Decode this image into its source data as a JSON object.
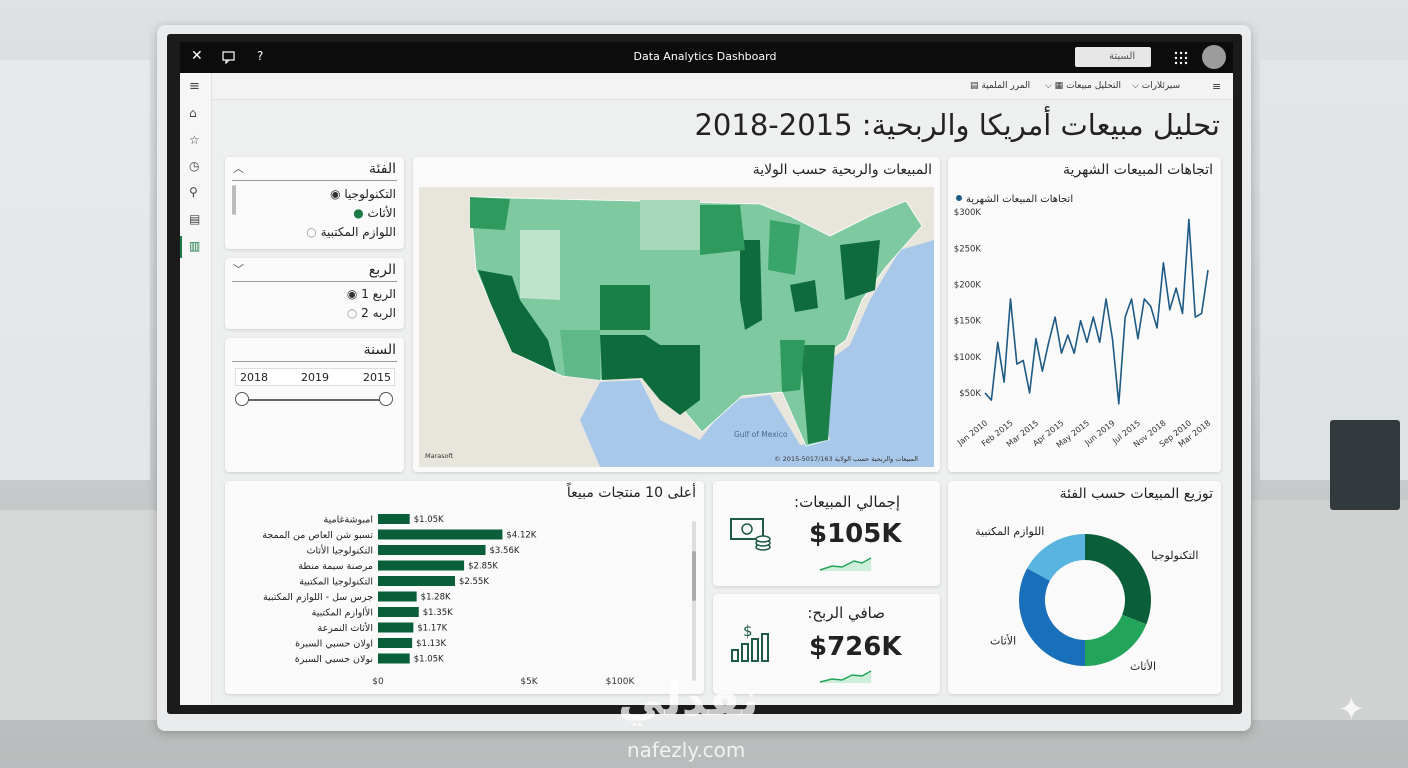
{
  "window": {
    "title": "Data Analytics Dashboard",
    "search": "السبتة"
  },
  "toolbar": [
    "سيرئلارات",
    "التحليل مبيعات",
    "المرر الملمية"
  ],
  "header": {
    "title": "تحليل مبيعات أمريكا والربحية: 2015-2018"
  },
  "filters": [
    {
      "title": "الفئة",
      "options": [
        "التكنولوجيا",
        "الأثاث",
        "اللوازم المكتبية"
      ]
    },
    {
      "title": "الربع",
      "options": [
        "الربع 1",
        "الربه 2"
      ]
    },
    {
      "title": "السنة",
      "options": [
        "2018",
        "2019",
        "2015"
      ]
    }
  ],
  "map": {
    "title": "المبيعات والربحية حسب الولاية",
    "label": "Gulf of Mexico",
    "logo": "Marasoft",
    "credit": "© 2015-5017/163 المبيعات والربحية حسب الولاية"
  },
  "kpis": [
    {
      "label": "إجمالي المبيعات:",
      "value": "$105K"
    },
    {
      "label": "صافي الربح:",
      "value": "$726K"
    }
  ],
  "watermark": {
    "arabic": "نفذلي",
    "url": "nafezly.com"
  },
  "chart_data": [
    {
      "type": "line",
      "title": "اتجاهات المبيعات الشهرية",
      "categories": [
        "Jan 2010",
        null,
        null,
        null,
        "Feb 2015",
        null,
        null,
        null,
        "Mar 2015",
        null,
        null,
        null,
        "Apr 2015",
        null,
        null,
        null,
        "May 2015",
        null,
        null,
        null,
        "Jun 2019",
        null,
        null,
        null,
        "Jul 2015",
        null,
        null,
        null,
        "Nov 2018",
        null,
        null,
        null,
        "Sep 2010",
        null,
        null,
        "Mar 2018"
      ],
      "series": [
        {
          "name": "اتجاهات المبيعات الشهرية",
          "color": "#1f5a85",
          "values": [
            50000,
            40000,
            120000,
            65000,
            180000,
            90000,
            95000,
            50000,
            125000,
            80000,
            120000,
            155000,
            105000,
            130000,
            105000,
            150000,
            120000,
            155000,
            120000,
            180000,
            125000,
            35000,
            155000,
            180000,
            125000,
            180000,
            170000,
            140000,
            230000,
            165000,
            195000,
            160000,
            290000,
            155000,
            160000,
            220000
          ]
        }
      ],
      "ylim": [
        25000,
        310000
      ],
      "yticks": [
        {
          "value": 50000,
          "label": "$50K"
        },
        {
          "value": 100000,
          "label": "$100K"
        },
        {
          "value": 150000,
          "label": "$150K"
        },
        {
          "value": 200000,
          "label": "$200K"
        },
        {
          "value": 250000,
          "label": "$250K"
        },
        {
          "value": 300000,
          "label": "$300K"
        }
      ],
      "grid": false,
      "legend": "top-left"
    },
    {
      "type": "bar",
      "orientation": "horizontal",
      "title": "أعلى 10 منتجات مبيعاً",
      "categories": [
        "امبوشةغامية",
        "تسبو شن العاص من الممجة",
        "التكنولوجيا الأثاث",
        "مرصنة سيمة منطة",
        "التكنولوجيا المكتبية",
        "جرس سل - اللوازم المكتبية",
        "الأاوازم المكتبية",
        "الأثاث النمرعة",
        "اولان حسبي السبرة",
        "نولان حسبي السبرة"
      ],
      "values": [
        1050,
        4120,
        3560,
        2850,
        2550,
        1280,
        1350,
        1170,
        1130,
        1050
      ],
      "value_labels": [
        "$1.05K",
        "$4.12K",
        "$3.56K",
        "$2.85K",
        "$2.55K",
        "$1.28K",
        "$1.35K",
        "$1.17K",
        "$1.13K",
        "$1.05K"
      ],
      "color": "#0b5e3a",
      "xlim": [
        0,
        100000
      ],
      "xticks": [
        {
          "value": 0,
          "label": "$0"
        },
        {
          "value": 5000,
          "label": "$5K"
        },
        {
          "value": 100000,
          "label": "$100K"
        }
      ]
    },
    {
      "type": "pie",
      "title": "توزيع المبيعات حسب الفئة",
      "donut": true,
      "categories": [
        "التكنولوجيا",
        "الأثاث",
        "الأثاث",
        "اللوازم المكتبية"
      ],
      "values": [
        31,
        19,
        33,
        17
      ],
      "colors": [
        "#0b5e3a",
        "#22a45a",
        "#1a6fba",
        "#5ab4e0"
      ]
    }
  ]
}
